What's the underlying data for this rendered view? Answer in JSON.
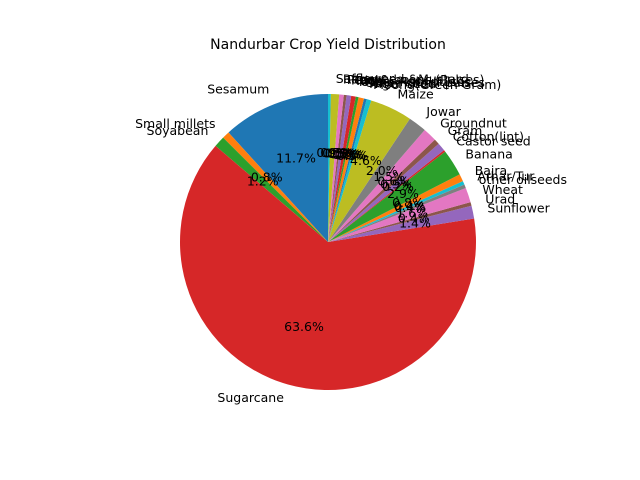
{
  "chart_data": {
    "type": "pie",
    "title": "Nandurbar Crop Yield Distribution",
    "start_angle_deg": 90,
    "direction": "counterclockwise",
    "slices": [
      {
        "label": "Sesamum",
        "value": 11.7,
        "pct_label": "11.7%",
        "color": "#1f77b4"
      },
      {
        "label": "Small millets",
        "value": 0.8,
        "pct_label": "0.8%",
        "color": "#ff7f0e"
      },
      {
        "label": "Soyabean",
        "value": 1.2,
        "pct_label": "1.2%",
        "color": "#2ca02c"
      },
      {
        "label": "Sugarcane",
        "value": 63.6,
        "pct_label": "63.6%",
        "color": "#d62728"
      },
      {
        "label": "Sunflower",
        "value": 1.4,
        "pct_label": "1.4%",
        "color": "#9467bd"
      },
      {
        "label": "Urad",
        "value": 0.4,
        "pct_label": "0.4%",
        "color": "#8c564b"
      },
      {
        "label": "Wheat",
        "value": 1.6,
        "pct_label": "1.6%",
        "color": "#e377c2"
      },
      {
        "label": "other oilseeds",
        "value": 0.4,
        "pct_label": "0.4%",
        "color": "#7f7f7f"
      },
      {
        "label": "Arhar/Tur",
        "value": 0.4,
        "pct_label": "0.4%",
        "color": "#17becf"
      },
      {
        "label": "Bajra",
        "value": 0.8,
        "pct_label": "0.8%",
        "color": "#ff7f0e"
      },
      {
        "label": "Banana",
        "value": 2.9,
        "pct_label": "2.9%",
        "color": "#2ca02c"
      },
      {
        "label": "Castor seed",
        "value": 0.2,
        "pct_label": "0.2%",
        "color": "#d62728"
      },
      {
        "label": "Cotton(lint)",
        "value": 0.9,
        "pct_label": "0.9%",
        "color": "#9467bd"
      },
      {
        "label": "Gram",
        "value": 0.6,
        "pct_label": "0.6%",
        "color": "#8c564b"
      },
      {
        "label": "Groundnut",
        "value": 1.5,
        "pct_label": "1.5%",
        "color": "#e377c2"
      },
      {
        "label": "Jowar",
        "value": 2.0,
        "pct_label": "2.0%",
        "color": "#7f7f7f"
      },
      {
        "label": "Maize",
        "value": 4.6,
        "pct_label": "4.6%",
        "color": "#bcbd22"
      },
      {
        "label": "Moong(Green Gram)",
        "value": 0.5,
        "pct_label": "0.5%",
        "color": "#17becf"
      },
      {
        "label": "Niger seed",
        "value": 0.3,
        "pct_label": "0.3%",
        "color": "#1f77b4"
      },
      {
        "label": "Other Kharif pulses",
        "value": 0.6,
        "pct_label": "0.6%",
        "color": "#ff7f0e"
      },
      {
        "label": "Other Rabi pulses",
        "value": 0.3,
        "pct_label": "0.3%",
        "color": "#2ca02c"
      },
      {
        "label": "Rice",
        "value": 0.5,
        "pct_label": "0.5%",
        "color": "#d62728"
      },
      {
        "label": "Ragi",
        "value": 0.5,
        "pct_label": "0.5%",
        "color": "#9467bd"
      },
      {
        "label": "Peas & beans (Pulses)",
        "value": 0.3,
        "pct_label": "0.3%",
        "color": "#8c564b"
      },
      {
        "label": "Rapeseed &Mustard",
        "value": 0.5,
        "pct_label": "0.5%",
        "color": "#e377c2"
      },
      {
        "label": "Safflower",
        "value": 0.9,
        "pct_label": "0.9%",
        "color": "#bcbd22"
      },
      {
        "label": "Sesamum_tail",
        "value": 0.3,
        "pct_label": "",
        "color": "#17becf"
      }
    ]
  }
}
